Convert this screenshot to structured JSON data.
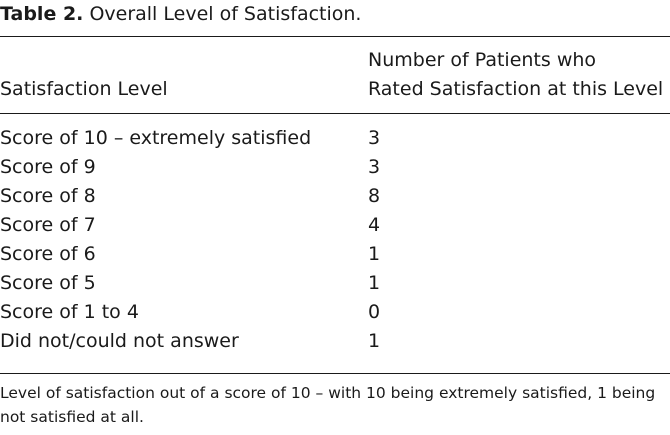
{
  "table": {
    "label": "Table 2.",
    "caption": "Overall Level of Satisfaction.",
    "headers": {
      "level": "Satisfaction Level",
      "count": "Number of Patients who Rated Satisfaction at this Level",
      "count_line1": "Number of Patients who",
      "count_line2": "Rated Satisfaction at this Level"
    },
    "rows": [
      {
        "level": "Score of 10 – extremely satisfied",
        "count": "3"
      },
      {
        "level": "Score of 9",
        "count": "3"
      },
      {
        "level": "Score of 8",
        "count": "8"
      },
      {
        "level": "Score of 7",
        "count": "4"
      },
      {
        "level": "Score of 6",
        "count": "1"
      },
      {
        "level": "Score of 5",
        "count": "1"
      },
      {
        "level": "Score of 1 to 4",
        "count": "0"
      },
      {
        "level": "Did not/could not answer",
        "count": "1"
      }
    ],
    "footnote": "Level of satisfaction out of a score of 10 – with 10 being extremely satisfied, 1 being not satisfied at all."
  }
}
